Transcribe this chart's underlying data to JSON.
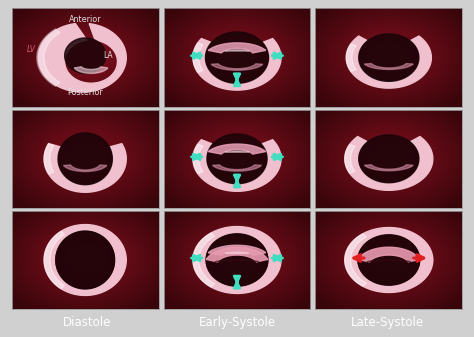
{
  "outer_bg": "#d0d0d0",
  "cell_bg_center": "#7a1020",
  "cell_bg_edge": "#3a0510",
  "pink_outer": "#f0c0d0",
  "pink_highlight": "#fce8f0",
  "pink_mid": "#e8a0b8",
  "pink_inner_shadow": "#c07090",
  "shadow_dark": "#2a0810",
  "shadow_mid": "#4a1020",
  "arrow_cyan": "#40ddc0",
  "arrow_red": "#e02020",
  "label_white": "#e8e8e8",
  "label_lv": "#d06070",
  "col_labels": [
    "Diastole",
    "Early-Systole",
    "Late-Systole"
  ],
  "bottom_bar_color": "#4a0810",
  "label_fontsize": 8.5
}
